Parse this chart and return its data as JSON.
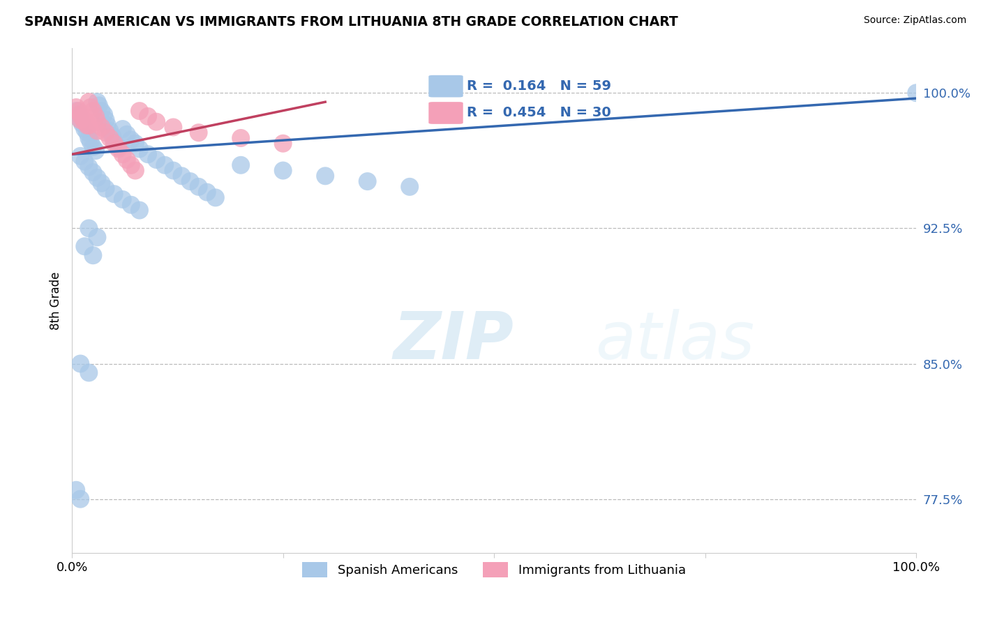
{
  "title": "SPANISH AMERICAN VS IMMIGRANTS FROM LITHUANIA 8TH GRADE CORRELATION CHART",
  "source": "Source: ZipAtlas.com",
  "ylabel": "8th Grade",
  "xlim": [
    0.0,
    1.0
  ],
  "ylim": [
    0.745,
    1.025
  ],
  "yticks": [
    0.775,
    0.85,
    0.925,
    1.0
  ],
  "ytick_labels": [
    "77.5%",
    "85.0%",
    "92.5%",
    "100.0%"
  ],
  "xticks": [
    0.0,
    0.25,
    0.5,
    0.75,
    1.0
  ],
  "xtick_labels": [
    "0.0%",
    "",
    "",
    "",
    "100.0%"
  ],
  "blue_R": 0.164,
  "blue_N": 59,
  "pink_R": 0.454,
  "pink_N": 30,
  "blue_color": "#a8c8e8",
  "pink_color": "#f4a0b8",
  "blue_line_color": "#3468b0",
  "pink_line_color": "#c04060",
  "legend_label_blue": "Spanish Americans",
  "legend_label_pink": "Immigrants from Lithuania",
  "blue_x": [
    0.005,
    0.008,
    0.01,
    0.012,
    0.015,
    0.018,
    0.02,
    0.022,
    0.025,
    0.028,
    0.03,
    0.032,
    0.035,
    0.038,
    0.04,
    0.042,
    0.045,
    0.048,
    0.05,
    0.055,
    0.06,
    0.065,
    0.07,
    0.075,
    0.08,
    0.09,
    0.1,
    0.11,
    0.12,
    0.13,
    0.14,
    0.15,
    0.16,
    0.17,
    0.01,
    0.015,
    0.02,
    0.025,
    0.03,
    0.035,
    0.04,
    0.05,
    0.06,
    0.07,
    0.08,
    0.2,
    0.25,
    0.3,
    0.35,
    0.4,
    0.02,
    0.03,
    0.015,
    0.025,
    0.01,
    0.02,
    0.005,
    0.01,
    1.0
  ],
  "blue_y": [
    0.99,
    0.988,
    0.985,
    0.983,
    0.98,
    0.978,
    0.975,
    0.973,
    0.97,
    0.968,
    0.995,
    0.993,
    0.99,
    0.988,
    0.985,
    0.982,
    0.979,
    0.976,
    0.973,
    0.97,
    0.98,
    0.977,
    0.974,
    0.972,
    0.969,
    0.966,
    0.963,
    0.96,
    0.957,
    0.954,
    0.951,
    0.948,
    0.945,
    0.942,
    0.965,
    0.962,
    0.959,
    0.956,
    0.953,
    0.95,
    0.947,
    0.944,
    0.941,
    0.938,
    0.935,
    0.96,
    0.957,
    0.954,
    0.951,
    0.948,
    0.925,
    0.92,
    0.915,
    0.91,
    0.85,
    0.845,
    0.78,
    0.775,
    1.0
  ],
  "pink_x": [
    0.005,
    0.008,
    0.01,
    0.012,
    0.015,
    0.018,
    0.02,
    0.022,
    0.025,
    0.028,
    0.03,
    0.035,
    0.04,
    0.045,
    0.05,
    0.055,
    0.06,
    0.065,
    0.07,
    0.075,
    0.08,
    0.09,
    0.1,
    0.12,
    0.15,
    0.2,
    0.25,
    0.01,
    0.02,
    0.03
  ],
  "pink_y": [
    0.992,
    0.99,
    0.988,
    0.986,
    0.984,
    0.982,
    0.995,
    0.992,
    0.99,
    0.987,
    0.984,
    0.981,
    0.978,
    0.975,
    0.972,
    0.969,
    0.966,
    0.963,
    0.96,
    0.957,
    0.99,
    0.987,
    0.984,
    0.981,
    0.978,
    0.975,
    0.972,
    0.985,
    0.982,
    0.979
  ],
  "blue_trendline_x": [
    0.0,
    1.0
  ],
  "blue_trendline_y": [
    0.966,
    0.997
  ],
  "pink_trendline_x": [
    0.0,
    0.3
  ],
  "pink_trendline_y": [
    0.966,
    0.995
  ]
}
